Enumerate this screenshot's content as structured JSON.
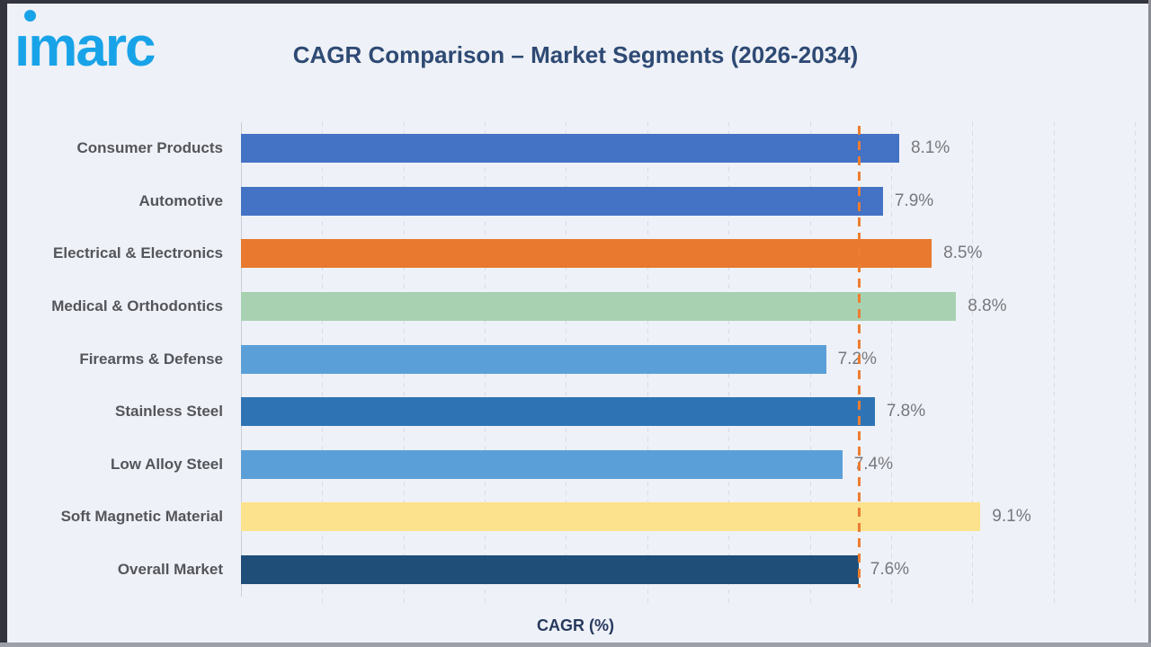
{
  "header": {
    "logo_text": "imarc",
    "title": "CAGR Comparison – Market Segments (2026-2034)"
  },
  "chart_data": {
    "type": "bar",
    "orientation": "horizontal",
    "title": "CAGR Comparison – Market Segments (2026-2034)",
    "xlabel": "CAGR (%)",
    "xlim": [
      0,
      11
    ],
    "grid": true,
    "gridline_interval": 1,
    "legend": "none",
    "categories": [
      "Consumer Products",
      "Automotive",
      "Electrical & Electronics",
      "Medical & Orthodontics",
      "Firearms & Defense",
      "Stainless Steel",
      "Low Alloy Steel",
      "Soft Magnetic Material",
      "Overall Market"
    ],
    "values": [
      8.1,
      7.9,
      8.5,
      8.8,
      7.2,
      7.8,
      7.4,
      9.1,
      7.6
    ],
    "value_labels": [
      "8.1%",
      "7.9%",
      "8.5%",
      "8.8%",
      "7.2%",
      "7.8%",
      "7.4%",
      "9.1%",
      "7.6%"
    ],
    "bar_colors": [
      "#4472C4",
      "#4472C4",
      "#E8792F",
      "#A8D1B2",
      "#5B9FD8",
      "#2E74B5",
      "#5B9FD8",
      "#FCE28C",
      "#1F4E79"
    ],
    "reference_line": {
      "value": 7.6,
      "color": "#ED7D31",
      "style": "dashed"
    }
  },
  "colors": {
    "background": "#EEF1F7",
    "title": "#2E4A74",
    "logo_blue": "#18A3E8",
    "category_label": "#54555A",
    "value_label": "#77787E",
    "gridline": "#D8DCE4",
    "axis_line": "#C9CDD6",
    "reference_line": "#ED7D31"
  }
}
